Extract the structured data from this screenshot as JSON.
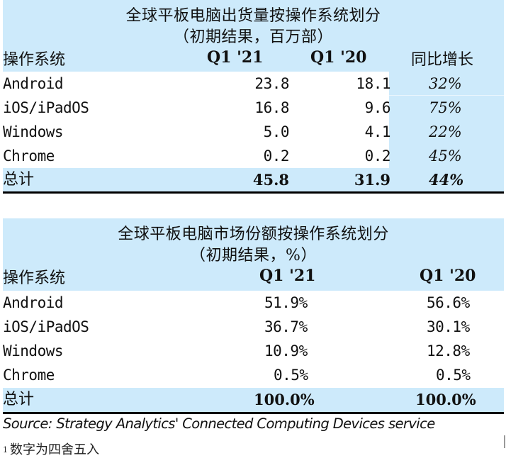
{
  "chart_data": [
    {
      "type": "table",
      "title": "全球平板电脑出货量按操作系统划分",
      "subtitle": "（初期结果，百万部）",
      "columns": [
        "操作系统",
        "Q1 '21",
        "Q1 '20",
        "同比增长"
      ],
      "rows": [
        {
          "os": "Android",
          "q1_21": "23.8",
          "q1_20": "18.1",
          "yoy": "32%"
        },
        {
          "os": "iOS/iPadOS",
          "q1_21": "16.8",
          "q1_20": "9.6",
          "yoy": "75%"
        },
        {
          "os": "Windows",
          "q1_21": "5.0",
          "q1_20": "4.1",
          "yoy": "22%"
        },
        {
          "os": "Chrome",
          "q1_21": "0.2",
          "q1_20": "0.2",
          "yoy": "45%"
        }
      ],
      "total": {
        "label": "总计",
        "q1_21": "45.8",
        "q1_20": "31.9",
        "yoy": "44%"
      },
      "unit": "百万部"
    },
    {
      "type": "table",
      "title": "全球平板电脑市场份额按操作系统划分",
      "subtitle": "（初期结果，%）",
      "columns": [
        "操作系统",
        "Q1 '21",
        "Q1 '20"
      ],
      "rows": [
        {
          "os": "Android",
          "q1_21": "51.9%",
          "q1_20": "56.6%"
        },
        {
          "os": "iOS/iPadOS",
          "q1_21": "36.7%",
          "q1_20": "30.1%"
        },
        {
          "os": "Windows",
          "q1_21": "10.9%",
          "q1_20": "12.8%"
        },
        {
          "os": "Chrome",
          "q1_21": "0.5%",
          "q1_20": "0.5%"
        }
      ],
      "total": {
        "label": "总计",
        "q1_21": "100.0%",
        "q1_20": "100.0%"
      },
      "unit": "%"
    }
  ],
  "footer": {
    "source": "Source: Strategy Analytics' Connected Computing Devices service",
    "note_mark": "1",
    "note": "数字为四舍五入"
  },
  "colors": {
    "header_bg": "#cdeafb",
    "rule": "#000000"
  }
}
